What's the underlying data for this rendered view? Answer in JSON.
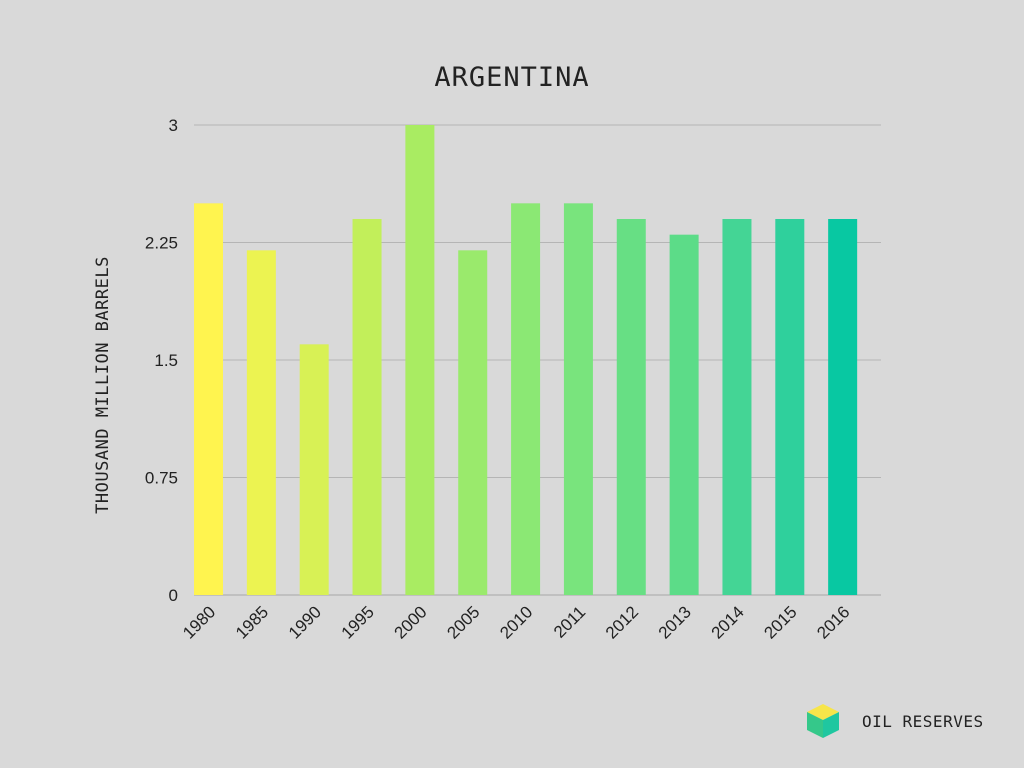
{
  "brand": {
    "label": "OIL RESERVES",
    "logo_icon": "cube-icon",
    "logo_colors": [
      "#f7e54a",
      "#35c88a",
      "#1fc7a0"
    ]
  },
  "chart_data": {
    "type": "bar",
    "title": "ARGENTINA",
    "xlabel": "",
    "ylabel": "THOUSAND MILLION BARRELS",
    "categories": [
      "1980",
      "1985",
      "1990",
      "1995",
      "2000",
      "2005",
      "2010",
      "2011",
      "2012",
      "2013",
      "2014",
      "2015",
      "2016"
    ],
    "values": [
      2.5,
      2.2,
      1.6,
      2.4,
      3.0,
      2.2,
      2.5,
      2.5,
      2.4,
      2.3,
      2.4,
      2.4,
      2.4
    ],
    "ylim": [
      0,
      3
    ],
    "yticks": [
      "0",
      "0.75",
      "1.5",
      "2.25",
      "3"
    ],
    "ytick_values": [
      0,
      0.75,
      1.5,
      2.25,
      3
    ],
    "grid": true,
    "legend": "none",
    "bar_colors": [
      "#fff44f",
      "#ecf351",
      "#d8f155",
      "#c2ef5a",
      "#a9ec62",
      "#9aea6c",
      "#8be874",
      "#79e47d",
      "#67df84",
      "#5cdc88",
      "#44d595",
      "#2fd09c",
      "#08c8a2"
    ]
  }
}
